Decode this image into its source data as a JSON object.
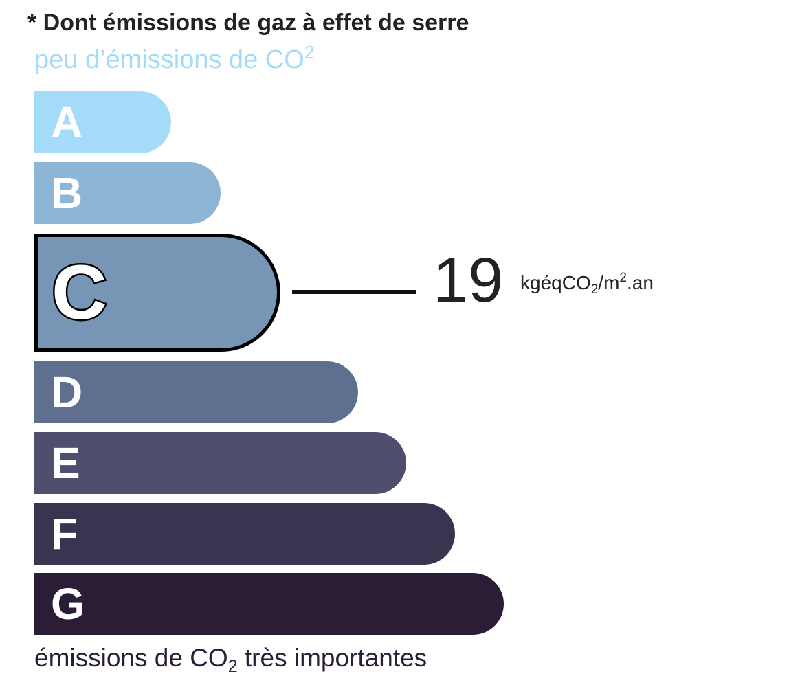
{
  "title": "* Dont émissions de gaz à effet de serre",
  "subtitle": {
    "text": "peu d’émissions de CO",
    "sup": "2"
  },
  "classes": [
    {
      "letter": "A",
      "color": "#a4dbf8"
    },
    {
      "letter": "B",
      "color": "#8db5d5"
    },
    {
      "letter": "C",
      "color": "#7796b6"
    },
    {
      "letter": "D",
      "color": "#5f6f8f"
    },
    {
      "letter": "E",
      "color": "#4e4f6f"
    },
    {
      "letter": "F",
      "color": "#3a3450"
    },
    {
      "letter": "G",
      "color": "#2b1d36"
    }
  ],
  "active_class": "C",
  "value": "19",
  "unit": {
    "prefix": "kgéqCO",
    "sub": "2",
    "mid": "/m",
    "sup": "2",
    "suffix": ".an"
  },
  "footer": {
    "prefix": "émissions de CO",
    "sub": "2",
    "suffix": " très importantes"
  }
}
